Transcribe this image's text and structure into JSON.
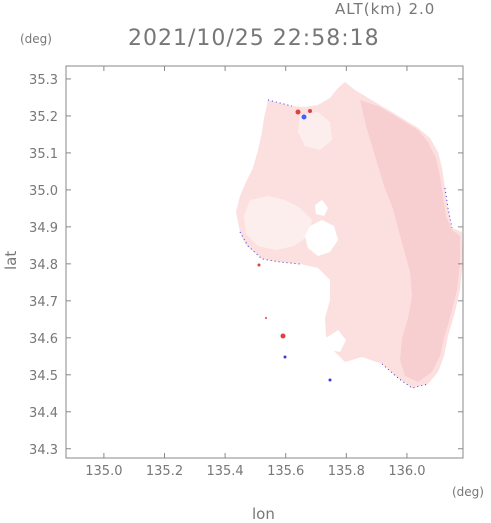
{
  "header": {
    "alt_label": "ALT(km) 2.0",
    "timestamp": "2021/10/25 22:58:18"
  },
  "chart_data": {
    "type": "heatmap",
    "xlabel": "lon",
    "ylabel": "lat",
    "x_unit": "(deg)",
    "y_unit": "(deg)",
    "xlim": [
      134.875,
      136.185
    ],
    "ylim": [
      34.275,
      35.335
    ],
    "x_ticks": [
      "135.0",
      "135.2",
      "135.4",
      "135.6",
      "135.8",
      "136.0"
    ],
    "x_tick_values": [
      135.0,
      135.2,
      135.4,
      135.6,
      135.8,
      136.0
    ],
    "y_ticks": [
      "34.3",
      "34.4",
      "34.5",
      "34.6",
      "34.7",
      "34.8",
      "34.9",
      "35.0",
      "35.1",
      "35.2",
      "35.3"
    ],
    "y_tick_values": [
      34.3,
      34.4,
      34.5,
      34.6,
      34.7,
      34.8,
      34.9,
      35.0,
      35.1,
      35.2,
      35.3
    ],
    "colors": {
      "field_main": "#fce0e0",
      "field_east": "#f8cfd0",
      "field_light": "#fdeeee",
      "edge_blue": "#3a3ae0",
      "hot_red": "#e04040",
      "cold_blue": "#4060ff"
    }
  }
}
